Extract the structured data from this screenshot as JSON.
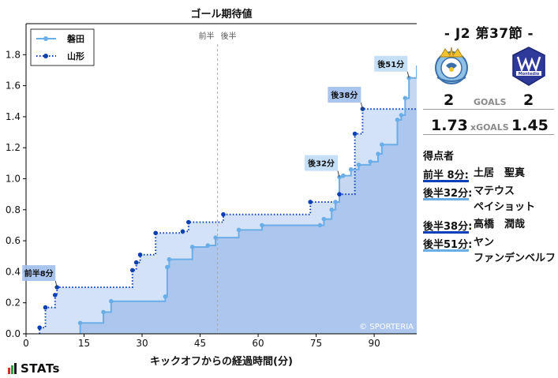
{
  "chart_data": {
    "type": "line",
    "title": "ゴール期待値",
    "xlabel": "キックオフからの経過時間(分)",
    "ylabel": "",
    "xlim": [
      0,
      101
    ],
    "ylim": [
      0,
      2.0
    ],
    "xticks": [
      0,
      15,
      30,
      45,
      60,
      75,
      90
    ],
    "yticks": [
      0.0,
      0.2,
      0.4,
      0.6,
      0.8,
      1.0,
      1.2,
      1.4,
      1.6,
      1.8
    ],
    "grid": false,
    "legend": "top-left",
    "half_marker": {
      "x": 49.5,
      "first_label": "前半",
      "second_label": "後半"
    },
    "watermark": "© SPORTERIA",
    "series": [
      {
        "name": "磐田",
        "color": "#6aaee8",
        "style": "solid",
        "points": [
          [
            14,
            0.07
          ],
          [
            20,
            0.14
          ],
          [
            22,
            0.21
          ],
          [
            36,
            0.24
          ],
          [
            36.5,
            0.43
          ],
          [
            37,
            0.48
          ],
          [
            43,
            0.56
          ],
          [
            47,
            0.57
          ],
          [
            49,
            0.62
          ],
          [
            55,
            0.67
          ],
          [
            61,
            0.7
          ],
          [
            76,
            0.7
          ],
          [
            77,
            0.74
          ],
          [
            79,
            0.8
          ],
          [
            80,
            0.85
          ],
          [
            81,
            1.01
          ],
          [
            82,
            1.02
          ],
          [
            84,
            1.06
          ],
          [
            86,
            1.09
          ],
          [
            89,
            1.11
          ],
          [
            91,
            1.16
          ],
          [
            92,
            1.22
          ],
          [
            96,
            1.38
          ],
          [
            97,
            1.41
          ],
          [
            98,
            1.52
          ],
          [
            99,
            1.65
          ],
          [
            101,
            1.73
          ]
        ]
      },
      {
        "name": "山形",
        "color": "#0a3fb5",
        "style": "dotted",
        "points": [
          [
            3.5,
            0.04
          ],
          [
            5,
            0.17
          ],
          [
            7.5,
            0.25
          ],
          [
            8,
            0.3
          ],
          [
            27.5,
            0.41
          ],
          [
            28.5,
            0.46
          ],
          [
            29.5,
            0.51
          ],
          [
            33.5,
            0.65
          ],
          [
            40.5,
            0.66
          ],
          [
            42,
            0.72
          ],
          [
            51,
            0.77
          ],
          [
            73.5,
            0.85
          ],
          [
            81,
            0.9
          ],
          [
            85,
            1.29
          ],
          [
            87,
            1.45
          ],
          [
            101,
            1.45
          ]
        ]
      }
    ],
    "annotations": [
      {
        "label": "前半8分",
        "x": 8,
        "y": 0.3,
        "team": "山形"
      },
      {
        "label": "後32分",
        "x": 81,
        "y": 1.01,
        "team": "磐田"
      },
      {
        "label": "後38分",
        "x": 87,
        "y": 1.45,
        "team": "山形"
      },
      {
        "label": "後51分",
        "x": 99,
        "y": 1.65,
        "team": "磐田"
      }
    ]
  },
  "match": {
    "title": "- J2 第37節 -",
    "home_score": "2",
    "away_score": "2",
    "goals_label": "GOALS",
    "home_xg": "1.73",
    "away_xg": "1.45",
    "xgoals_label": "xGOALS"
  },
  "scorers": {
    "title": "得点者",
    "list": [
      {
        "time": "前半  8分:",
        "name": "土居　聖真",
        "name2": "",
        "color": "#0a3fb5"
      },
      {
        "time": "後半32分:",
        "name": "マテウス",
        "name2": "ペイショット",
        "color": "#6aaee8"
      },
      {
        "time": "後半38分:",
        "name": "高橋　潤哉",
        "name2": "",
        "color": "#0a3fb5"
      },
      {
        "time": "後半51分:",
        "name": "ヤン",
        "name2": "ファンデンベルフ",
        "color": "#6aaee8"
      }
    ]
  },
  "brand": {
    "stats_logo": "STATs"
  },
  "icons": {
    "home_crest": "jubilo-iwata-crest-icon",
    "away_crest": "montedio-yamagata-crest-icon"
  }
}
